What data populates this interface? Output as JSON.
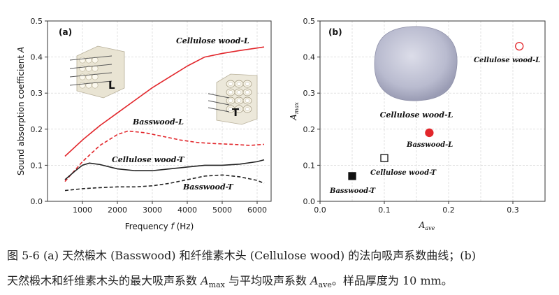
{
  "colors": {
    "red": "#e2262b",
    "black": "#222222",
    "grid": "#cfcfcf"
  },
  "chart_data": [
    {
      "type": "line",
      "panel_label": "(a)",
      "xlabel": "Frequency",
      "xlabel_var": "f",
      "xlabel_unit": "(Hz)",
      "ylabel": "Sound absorption coefficient",
      "ylabel_var": "A",
      "xlim": [
        0,
        6400
      ],
      "ylim": [
        0,
        0.5
      ],
      "xticks": [
        1000,
        2000,
        3000,
        4000,
        5000,
        6000
      ],
      "xtick_labels": [
        "1000",
        "2000",
        "3000",
        "4000",
        "5000",
        "6000"
      ],
      "yticks": [
        0,
        0.1,
        0.2,
        0.3,
        0.4,
        0.5
      ],
      "ytick_labels": [
        "0.0",
        "0.1",
        "0.2",
        "0.3",
        "0.4",
        "0.5"
      ],
      "grid": true,
      "series": [
        {
          "name": "Cellulose wood-L",
          "color": "#e2262b",
          "dash": "solid",
          "x": [
            500,
            1000,
            1500,
            2000,
            2500,
            3000,
            3500,
            4000,
            4500,
            5000,
            5500,
            6000,
            6200
          ],
          "y": [
            0.125,
            0.17,
            0.21,
            0.245,
            0.28,
            0.315,
            0.345,
            0.375,
            0.4,
            0.41,
            0.418,
            0.425,
            0.428
          ]
        },
        {
          "name": "Basswood-L",
          "color": "#e2262b",
          "dash": "dashed",
          "x": [
            500,
            1000,
            1500,
            2000,
            2300,
            2800,
            3300,
            3800,
            4300,
            4800,
            5300,
            5800,
            6200
          ],
          "y": [
            0.055,
            0.11,
            0.155,
            0.185,
            0.195,
            0.19,
            0.18,
            0.17,
            0.163,
            0.16,
            0.158,
            0.155,
            0.158
          ]
        },
        {
          "name": "Cellulose wood-T",
          "color": "#222222",
          "dash": "solid",
          "x": [
            500,
            800,
            1000,
            1200,
            1500,
            2000,
            2500,
            3000,
            3500,
            4000,
            4500,
            5000,
            5500,
            6000,
            6200
          ],
          "y": [
            0.06,
            0.085,
            0.1,
            0.106,
            0.102,
            0.09,
            0.085,
            0.085,
            0.09,
            0.095,
            0.1,
            0.1,
            0.103,
            0.11,
            0.115
          ]
        },
        {
          "name": "Basswood-T",
          "color": "#222222",
          "dash": "dashed",
          "x": [
            500,
            1000,
            1500,
            2000,
            2500,
            3000,
            3500,
            4000,
            4500,
            5000,
            5500,
            6000,
            6200
          ],
          "y": [
            0.03,
            0.035,
            0.038,
            0.04,
            0.04,
            0.043,
            0.05,
            0.06,
            0.07,
            0.073,
            0.068,
            0.058,
            0.05
          ]
        }
      ],
      "annotations": [
        "Cellulose wood-L",
        "Basswood-L",
        "Cellulose wood-T",
        "Basswood-T"
      ],
      "inset_labels": [
        "L",
        "T"
      ]
    },
    {
      "type": "scatter",
      "panel_label": "(b)",
      "xlabel": "A",
      "xlabel_sub": "ave",
      "ylabel": "A",
      "ylabel_sub": "max",
      "xlim": [
        0,
        0.35
      ],
      "ylim": [
        0,
        0.5
      ],
      "xticks": [
        0,
        0.1,
        0.2,
        0.3
      ],
      "xtick_labels": [
        "0.0",
        "0.1",
        "0.2",
        "0.3"
      ],
      "yticks": [
        0,
        0.1,
        0.2,
        0.3,
        0.4,
        0.5
      ],
      "ytick_labels": [
        "0.0",
        "0.1",
        "0.2",
        "0.3",
        "0.4",
        "0.5"
      ],
      "grid": true,
      "points": [
        {
          "name": "Basswood-T",
          "x": 0.05,
          "y": 0.07,
          "shape": "square",
          "filled": true,
          "color": "#111111"
        },
        {
          "name": "Cellulose wood-T",
          "x": 0.1,
          "y": 0.12,
          "shape": "square",
          "filled": false,
          "color": "#111111"
        },
        {
          "name": "Basswood-L",
          "x": 0.17,
          "y": 0.19,
          "shape": "circle",
          "filled": true,
          "color": "#e2262b"
        },
        {
          "name": "Cellulose wood-L",
          "x": 0.31,
          "y": 0.43,
          "shape": "circle",
          "filled": false,
          "color": "#e2262b"
        }
      ],
      "inset_label": "Cellulose wood-L"
    }
  ],
  "caption": {
    "line1": "图 5-6 (a)  天然椴木  (Basswood)  和纤维素木头  (Cellulose wood)  的法向吸声系数曲线；(b)",
    "line2_pre": "天然椴木和纤维素木头的最大吸声系数 ",
    "amax_main": "A",
    "amax_sub": "max",
    "line2_mid": " 与平均吸声系数 ",
    "aave_main": "A",
    "aave_sub": "ave",
    "line2_post": "。样品厚度为 10 mm。"
  }
}
